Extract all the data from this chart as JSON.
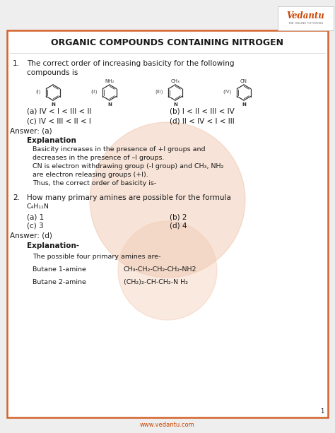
{
  "title": "ORGANIC COMPOUNDS CONTAINING NITROGEN",
  "bg_color": "#eeeeee",
  "card_color": "#ffffff",
  "border_color": "#d4622a",
  "watermark_color": "#f0c8b0",
  "footer": "www.vedantu.com",
  "page_num": "1",
  "vedantu_color": "#cc4400",
  "text_color": "#1a1a1a",
  "footer_color": "#cc4400",
  "q1_line1": "The correct order of increasing basicity for the following",
  "q1_line2": "compounds is",
  "q1_opt_a": "(a) IV < I < III < II",
  "q1_opt_b": "(b) I < II < III < IV",
  "q1_opt_c": "(c) IV < III < II < I",
  "q1_opt_d": "(d) II < IV < I < III",
  "q1_answer": "Answer: (a)",
  "q1_exp_title": "Explanation",
  "q1_exp1": "Basicity increases in the presence of +I groups and",
  "q1_exp2": "decreases in the presence of –I groups.",
  "q1_exp3": "CN is electron withdrawing group (-I group) and CH₃, NH₂",
  "q1_exp4": "are electron releasing groups (+I).",
  "q1_exp5": "Thus, the correct order of basicity is-",
  "q2_line1": "How many primary amines are possible for the formula",
  "q2_line2": "C₄H₁₁N",
  "q2_opt_a": "(a) 1",
  "q2_opt_b": "(b) 2",
  "q2_opt_c": "(c) 3",
  "q2_opt_d": "(d) 4",
  "q2_answer": "Answer: (d)",
  "q2_exp_title": "Explanation-",
  "q2_exp1": "The possible four primary amines are-",
  "q2_but1_name": "Butane 1-amine",
  "q2_but1_formula": "CH₃-CH₂-CH₂-CH₂-NH2",
  "q2_but2_name": "Butane 2-amine",
  "q2_but2_formula": "(CH₂)₂-CH-CH₂-N H₂",
  "struct_labels": [
    "(I)",
    "(II)",
    "(III)",
    "(IV)"
  ],
  "struct_subs": [
    "",
    "NH₂",
    "CH₃",
    "CN"
  ]
}
